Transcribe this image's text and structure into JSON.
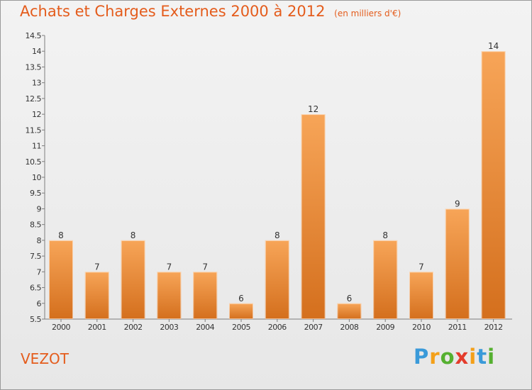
{
  "title": "Achats et Charges Externes 2000 à 2012",
  "unit": "(en milliers d'€)",
  "location": "VEZOT",
  "brand": {
    "letters": [
      "P",
      "r",
      "o",
      "x",
      "i",
      "t",
      "i"
    ],
    "colors": [
      "#3a9ad9",
      "#f4a019",
      "#55b030",
      "#e43c2c",
      "#f4a019",
      "#3a9ad9",
      "#55b030"
    ]
  },
  "colors": {
    "title": "#e45c1c",
    "bar_light": "#f7a558",
    "bar_dark": "#d46f1d",
    "axis": "#7d7d7d"
  },
  "chart_data": {
    "type": "bar",
    "categories": [
      "2000",
      "2001",
      "2002",
      "2003",
      "2004",
      "2005",
      "2006",
      "2007",
      "2008",
      "2009",
      "2010",
      "2011",
      "2012"
    ],
    "values": [
      8,
      7,
      8,
      7,
      7,
      6,
      8,
      12,
      6,
      8,
      7,
      9,
      14
    ],
    "ylim": [
      5.5,
      14.5
    ],
    "yticks": [
      5.5,
      6,
      6.5,
      7,
      7.5,
      8,
      8.5,
      9,
      9.5,
      10,
      10.5,
      11,
      11.5,
      12,
      12.5,
      13,
      13.5,
      14,
      14.5
    ],
    "data_labels": true,
    "grid": false
  }
}
